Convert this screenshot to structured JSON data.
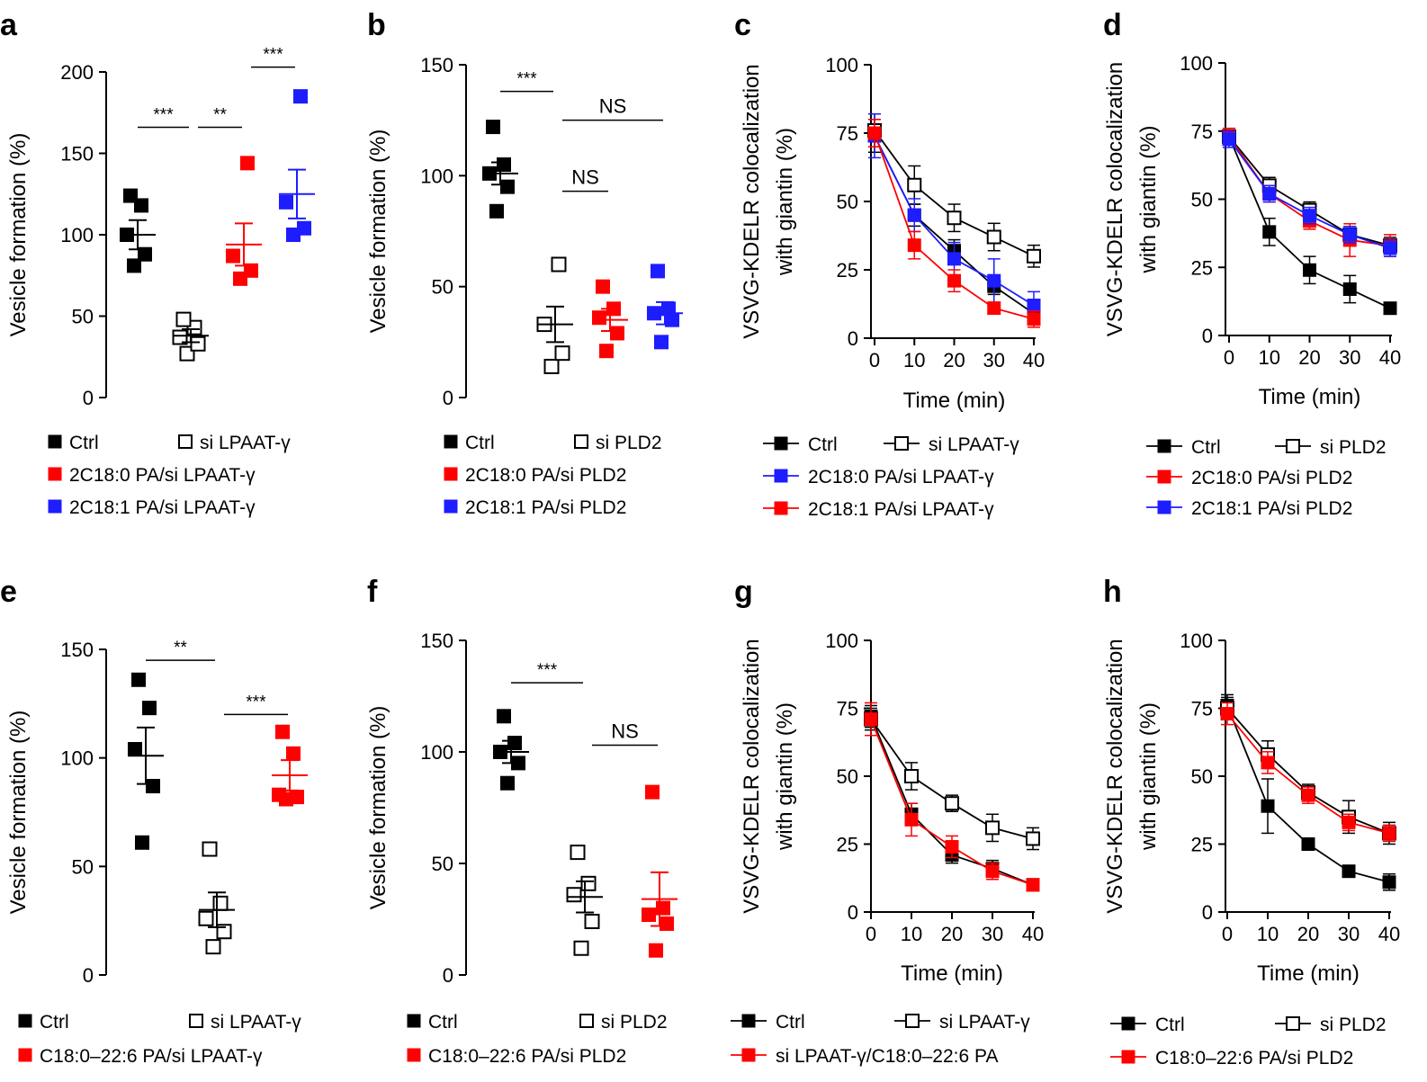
{
  "colors": {
    "black": "#000000",
    "red": "#ff0000",
    "blue": "#1d1dff"
  },
  "chart_data": [
    {
      "id": "a",
      "type": "scatter",
      "ylabel": "Vesicle formation (%)",
      "ylim": [
        0,
        200
      ],
      "yticks": [
        "0",
        "50",
        "100",
        "150",
        "200"
      ],
      "groups": [
        {
          "name": "Ctrl",
          "color": "black",
          "filled": true,
          "points": [
            81,
            88,
            100,
            118,
            124
          ],
          "mean": 100,
          "sem": 9
        },
        {
          "name": "si LPAAT-γ",
          "color": "black",
          "filled": false,
          "points": [
            27,
            33,
            37,
            43,
            48
          ],
          "mean": 38,
          "sem": 4
        },
        {
          "name": "2C18:0 PA/si LPAAT-γ",
          "color": "red",
          "filled": true,
          "points": [
            73,
            78,
            87,
            144
          ],
          "mean": 94,
          "sem": 13
        },
        {
          "name": "2C18:1 PA/si LPAAT-γ",
          "color": "blue",
          "filled": true,
          "points": [
            100,
            104,
            120,
            185
          ],
          "mean": 125,
          "sem": 15
        }
      ],
      "sig": [
        {
          "text": "***",
          "from": 0,
          "to": 1,
          "y": 166
        },
        {
          "text": "**",
          "from": 1,
          "to": 2,
          "y": 166
        },
        {
          "text": "***",
          "from": 2,
          "to": 3,
          "y": 203
        }
      ],
      "legend": [
        [
          {
            "label": "Ctrl",
            "group": 0
          },
          {
            "label": "si LPAAT-γ",
            "group": 1
          }
        ],
        [
          {
            "label": "2C18:0 PA/si LPAAT-γ",
            "group": 2
          }
        ],
        [
          {
            "label": "2C18:1 PA/si LPAAT-γ",
            "group": 3
          }
        ]
      ]
    },
    {
      "id": "b",
      "type": "scatter",
      "ylabel": "Vesicle formation (%)",
      "ylim": [
        0,
        150
      ],
      "yticks": [
        "0",
        "50",
        "100",
        "150"
      ],
      "groups": [
        {
          "name": "Ctrl",
          "color": "black",
          "filled": true,
          "points": [
            84,
            95,
            101,
            105,
            122
          ],
          "mean": 101,
          "sem": 5
        },
        {
          "name": "si PLD2",
          "color": "black",
          "filled": false,
          "points": [
            14,
            20,
            33,
            60
          ],
          "mean": 33,
          "sem": 8
        },
        {
          "name": "2C18:0 PA/si PLD2",
          "color": "red",
          "filled": true,
          "points": [
            21,
            29,
            36,
            40,
            50
          ],
          "mean": 35,
          "sem": 5
        },
        {
          "name": "2C18:1 PA/si PLD2",
          "color": "blue",
          "filled": true,
          "points": [
            25,
            35,
            38,
            40,
            57
          ],
          "mean": 38,
          "sem": 5
        }
      ],
      "sig": [
        {
          "text": "***",
          "from": 0,
          "to": 1,
          "y": 138
        },
        {
          "text": "NS",
          "from": 1,
          "to": 2,
          "y": 93
        },
        {
          "text": "NS",
          "from": 1,
          "to": 3,
          "y": 125
        }
      ],
      "legend": [
        [
          {
            "label": "Ctrl",
            "group": 0
          },
          {
            "label": "si PLD2",
            "group": 1
          }
        ],
        [
          {
            "label": "2C18:0 PA/si PLD2",
            "group": 2
          }
        ],
        [
          {
            "label": "2C18:1 PA/si PLD2",
            "group": 3
          }
        ]
      ]
    },
    {
      "id": "c",
      "type": "line",
      "ylabel": [
        "VSVG-KDELR colocalization",
        "with giantin (%)"
      ],
      "xlabel": "Time (min)",
      "ylim": [
        0,
        100
      ],
      "yticks": [
        "0",
        "25",
        "50",
        "75",
        "100"
      ],
      "x": [
        0,
        10,
        20,
        30,
        40
      ],
      "xticks": [
        "0",
        "10",
        "20",
        "30",
        "40"
      ],
      "series": [
        {
          "name": "Ctrl",
          "color": "black",
          "filled": true,
          "values": [
            74,
            45,
            32,
            19,
            9
          ],
          "err": [
            6,
            4,
            4,
            3,
            2
          ]
        },
        {
          "name": "si LPAAT-γ",
          "color": "black",
          "filled": false,
          "values": [
            76,
            56,
            44,
            37,
            30
          ],
          "err": [
            6,
            7,
            5,
            5,
            4
          ]
        },
        {
          "name": "2C18:0 PA/si LPAAT-γ",
          "color": "blue",
          "filled": true,
          "values": [
            74,
            45,
            29,
            21,
            12
          ],
          "err": [
            8,
            6,
            6,
            8,
            5
          ]
        },
        {
          "name": "2C18:1 PA/si LPAAT-γ",
          "color": "red",
          "filled": true,
          "values": [
            75,
            34,
            21,
            11,
            7
          ],
          "err": [
            5,
            5,
            4,
            2,
            3
          ]
        }
      ],
      "legend": [
        [
          {
            "label": "Ctrl",
            "series": 0
          },
          {
            "label": "si LPAAT-γ",
            "series": 1
          }
        ],
        [
          {
            "label": "2C18:0 PA/si LPAAT-γ",
            "series": 2
          }
        ],
        [
          {
            "label": "2C18:1 PA/si LPAAT-γ",
            "series": 3
          }
        ]
      ]
    },
    {
      "id": "d",
      "type": "line",
      "ylabel": [
        "VSVG-KDELR colocalization",
        "with giantin (%)"
      ],
      "xlabel": "Time (min)",
      "ylim": [
        0,
        100
      ],
      "yticks": [
        "0",
        "25",
        "50",
        "75",
        "100"
      ],
      "x": [
        0,
        10,
        20,
        30,
        40
      ],
      "xticks": [
        "0",
        "10",
        "20",
        "30",
        "40"
      ],
      "series": [
        {
          "name": "Ctrl",
          "color": "black",
          "filled": true,
          "values": [
            73,
            38,
            24,
            17,
            10
          ],
          "err": [
            3,
            5,
            5,
            5,
            1
          ]
        },
        {
          "name": "si PLD2",
          "color": "black",
          "filled": false,
          "values": [
            73,
            55,
            46,
            37,
            33
          ],
          "err": [
            3,
            3,
            3,
            3,
            3
          ]
        },
        {
          "name": "2C18:0 PA/si PLD2",
          "color": "red",
          "filled": true,
          "values": [
            73,
            52,
            42,
            35,
            33
          ],
          "err": [
            3,
            3,
            3,
            6,
            4
          ]
        },
        {
          "name": "2C18:1 PA/si PLD2",
          "color": "blue",
          "filled": true,
          "values": [
            72,
            52,
            44,
            37,
            32
          ],
          "err": [
            3,
            3,
            3,
            3,
            3
          ]
        }
      ],
      "legend": [
        [
          {
            "label": "Ctrl",
            "series": 0
          },
          {
            "label": "si PLD2",
            "series": 1
          }
        ],
        [
          {
            "label": "2C18:0 PA/si PLD2",
            "series": 2
          }
        ],
        [
          {
            "label": "2C18:1 PA/si PLD2",
            "series": 3
          }
        ]
      ]
    },
    {
      "id": "e",
      "type": "scatter",
      "ylabel": "Vesicle formation (%)",
      "ylim": [
        0,
        150
      ],
      "yticks": [
        "0",
        "50",
        "100",
        "150"
      ],
      "groups": [
        {
          "name": "Ctrl",
          "color": "black",
          "filled": true,
          "points": [
            61,
            87,
            104,
            123,
            136
          ],
          "mean": 101,
          "sem": 13
        },
        {
          "name": "si LPAAT-γ",
          "color": "black",
          "filled": false,
          "points": [
            13,
            20,
            26,
            33,
            58
          ],
          "mean": 30,
          "sem": 8
        },
        {
          "name": "C18:0–22:6 PA/si LPAAT-γ",
          "color": "red",
          "filled": true,
          "points": [
            81,
            82,
            83,
            102,
            112
          ],
          "mean": 92,
          "sem": 7
        }
      ],
      "sig": [
        {
          "text": "**",
          "from": 0,
          "to": 1,
          "y": 145
        },
        {
          "text": "***",
          "from": 1,
          "to": 2,
          "y": 120
        }
      ],
      "legend": [
        [
          {
            "label": "Ctrl",
            "group": 0
          },
          {
            "label": "si LPAAT-γ",
            "group": 1
          }
        ],
        [
          {
            "label": "C18:0–22:6 PA/si LPAAT-γ",
            "group": 2
          }
        ]
      ]
    },
    {
      "id": "f",
      "type": "scatter",
      "ylabel": "Vesicle formation (%)",
      "ylim": [
        0,
        150
      ],
      "yticks": [
        "0",
        "50",
        "100",
        "150"
      ],
      "groups": [
        {
          "name": "Ctrl",
          "color": "black",
          "filled": true,
          "points": [
            86,
            95,
            100,
            104,
            116
          ],
          "mean": 100,
          "sem": 5
        },
        {
          "name": "si PLD2",
          "color": "black",
          "filled": false,
          "points": [
            12,
            24,
            36,
            41,
            55
          ],
          "mean": 35,
          "sem": 7
        },
        {
          "name": "C18:0–22:6 PA/si PLD2",
          "color": "red",
          "filled": true,
          "points": [
            11,
            23,
            27,
            30,
            82
          ],
          "mean": 34,
          "sem": 12
        }
      ],
      "sig": [
        {
          "text": "***",
          "from": 0,
          "to": 1,
          "y": 131
        },
        {
          "text": "NS",
          "from": 1,
          "to": 2,
          "y": 103
        }
      ],
      "legend": [
        [
          {
            "label": "Ctrl",
            "group": 0
          },
          {
            "label": "si PLD2",
            "group": 1
          }
        ],
        [
          {
            "label": "C18:0–22:6 PA/si PLD2",
            "group": 2
          }
        ]
      ]
    },
    {
      "id": "g",
      "type": "line",
      "ylabel": [
        "VSVG-KDELR colocalization",
        "with giantin (%)"
      ],
      "xlabel": "Time (min)",
      "ylim": [
        0,
        100
      ],
      "yticks": [
        "0",
        "25",
        "50",
        "75",
        "100"
      ],
      "x": [
        0,
        10,
        20,
        30,
        40
      ],
      "xticks": [
        "0",
        "10",
        "20",
        "30",
        "40"
      ],
      "series": [
        {
          "name": "Ctrl",
          "color": "black",
          "filled": true,
          "values": [
            72,
            36,
            21,
            16,
            10
          ],
          "err": [
            4,
            4,
            3,
            3,
            1
          ]
        },
        {
          "name": "si LPAAT-γ",
          "color": "black",
          "filled": false,
          "values": [
            71,
            50,
            40,
            31,
            27
          ],
          "err": [
            4,
            5,
            3,
            5,
            4
          ]
        },
        {
          "name": "si LPAAT-γ/C18:0–22:6 PA",
          "color": "red",
          "filled": true,
          "values": [
            71,
            34,
            24,
            15,
            10
          ],
          "err": [
            6,
            6,
            4,
            3,
            1
          ]
        }
      ],
      "legend": [
        [
          {
            "label": "Ctrl",
            "series": 0
          },
          {
            "label": "si LPAAT-γ",
            "series": 1
          }
        ],
        [
          {
            "label": "si LPAAT-γ/C18:0–22:6 PA",
            "series": 2
          }
        ]
      ]
    },
    {
      "id": "h",
      "type": "line",
      "ylabel": [
        "VSVG-KDELR colocalization",
        "with giantin (%)"
      ],
      "xlabel": "Time (min)",
      "ylim": [
        0,
        100
      ],
      "yticks": [
        "0",
        "25",
        "50",
        "75",
        "100"
      ],
      "x": [
        0,
        10,
        20,
        30,
        40
      ],
      "xticks": [
        "0",
        "10",
        "20",
        "30",
        "40"
      ],
      "series": [
        {
          "name": "Ctrl",
          "color": "black",
          "filled": true,
          "values": [
            76,
            39,
            25,
            15,
            11
          ],
          "err": [
            4,
            10,
            2,
            2,
            3
          ]
        },
        {
          "name": "si PLD2",
          "color": "black",
          "filled": false,
          "values": [
            75,
            58,
            44,
            35,
            29
          ],
          "err": [
            4,
            5,
            3,
            6,
            4
          ]
        },
        {
          "name": "C18:0–22:6 PA/si PLD2",
          "color": "red",
          "filled": true,
          "values": [
            73,
            55,
            43,
            33,
            29
          ],
          "err": [
            4,
            4,
            3,
            3,
            3
          ]
        }
      ],
      "legend": [
        [
          {
            "label": "Ctrl",
            "series": 0
          },
          {
            "label": "si PLD2",
            "series": 1
          }
        ],
        [
          {
            "label": "C18:0–22:6 PA/si PLD2",
            "series": 2
          }
        ]
      ]
    }
  ]
}
